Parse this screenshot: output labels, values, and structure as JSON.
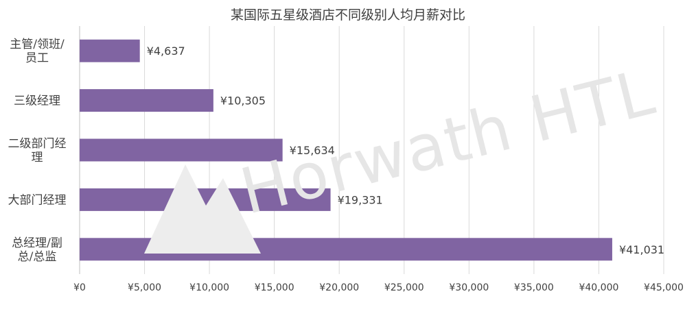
{
  "chart_data": {
    "type": "bar",
    "orientation": "horizontal",
    "title": "某国际五星级酒店不同级别人均月薪对比",
    "categories": [
      [
        "主管/领班/",
        "员工"
      ],
      [
        "三级经理"
      ],
      [
        "二级部门经",
        "理"
      ],
      [
        "大部门经理"
      ],
      [
        "总经理/副",
        "总/总监"
      ]
    ],
    "values": [
      4637,
      10305,
      15634,
      19331,
      41031
    ],
    "data_labels": [
      "¥4,637",
      "¥10,305",
      "¥15,634",
      "¥19,331",
      "¥41,031"
    ],
    "x_ticks": [
      "¥0",
      "¥5,000",
      "¥10,000",
      "¥15,000",
      "¥20,000",
      "¥25,000",
      "¥30,000",
      "¥35,000",
      "¥40,000",
      "¥45,000"
    ],
    "xlim": [
      0,
      45000
    ],
    "grid": true,
    "legend": "none",
    "bar_color": "#8064a2",
    "grid_color": "#d9d9d9",
    "text_color": "#404040"
  },
  "watermark": {
    "text": "Horwath HTL"
  }
}
